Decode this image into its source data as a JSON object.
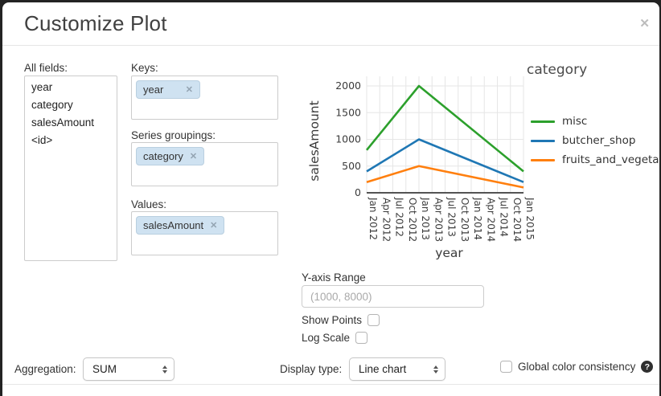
{
  "dialog": {
    "title": "Customize Plot",
    "close_label": "✕"
  },
  "fields_panel": {
    "label": "All fields:",
    "items": [
      "year",
      "category",
      "salesAmount",
      "<id>"
    ]
  },
  "wells": {
    "keys": {
      "label": "Keys:",
      "pills": [
        "year"
      ]
    },
    "series": {
      "label": "Series groupings:",
      "pills": [
        "category"
      ]
    },
    "values": {
      "label": "Values:",
      "pills": [
        "salesAmount"
      ]
    }
  },
  "chart_data": {
    "type": "line",
    "xlabel": "year",
    "ylabel": "salesAmount",
    "legend_title": "category",
    "legend_position": "right",
    "grid": true,
    "x_ticks": [
      "Jan 2012",
      "Apr 2012",
      "Jul 2012",
      "Oct 2012",
      "Jan 2013",
      "Apr 2013",
      "Jul 2013",
      "Oct 2013",
      "Jan 2014",
      "Apr 2014",
      "Jul 2014",
      "Oct 2014",
      "Jan 2015"
    ],
    "y_ticks": [
      0,
      500,
      1000,
      1500,
      2000
    ],
    "ylim": [
      0,
      2150
    ],
    "series": [
      {
        "name": "fruits_and_vegetables",
        "color": "#ff7f0e",
        "x": [
          "Jan 2012",
          "Jan 2013",
          "Jan 2015"
        ],
        "values": [
          200,
          500,
          100
        ]
      },
      {
        "name": "butcher_shop",
        "color": "#1f77b4",
        "x": [
          "Jan 2012",
          "Jan 2013",
          "Jan 2015"
        ],
        "values": [
          400,
          1000,
          200
        ]
      },
      {
        "name": "misc",
        "color": "#2ca02c",
        "x": [
          "Jan 2012",
          "Jan 2013",
          "Jan 2015"
        ],
        "values": [
          800,
          2000,
          400
        ]
      }
    ]
  },
  "controls": {
    "y_axis_range": {
      "label": "Y-axis Range",
      "placeholder": "(1000, 8000)",
      "value": ""
    },
    "show_points": {
      "label": "Show Points",
      "checked": false
    },
    "log_scale": {
      "label": "Log Scale",
      "checked": false
    }
  },
  "footer": {
    "aggregation": {
      "label": "Aggregation:",
      "value": "SUM"
    },
    "display_type": {
      "label": "Display type:",
      "value": "Line chart"
    },
    "global_color": {
      "label": "Global color consistency",
      "checked": false,
      "help_glyph": "?"
    }
  },
  "colors": {
    "pill_bg": "#cfe2f1",
    "axis": "#3c3c3c",
    "gridline": "#e6e6e6"
  }
}
